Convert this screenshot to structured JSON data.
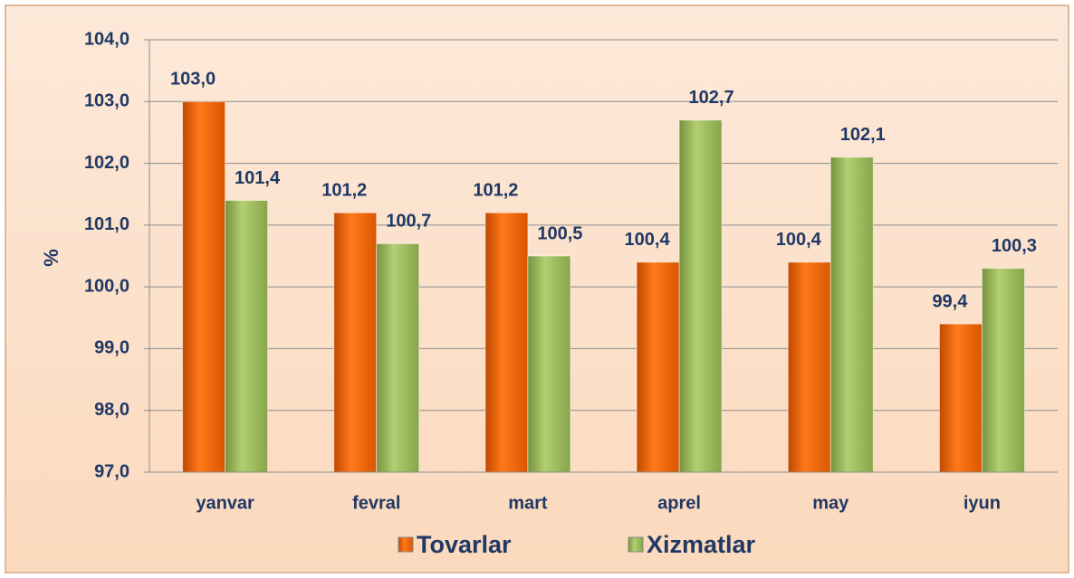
{
  "chart_data": {
    "type": "bar",
    "y_label": "%",
    "categories": [
      "yanvar",
      "fevral",
      "mart",
      "aprel",
      "may",
      "iyun"
    ],
    "series": [
      {
        "name": "Tovarlar",
        "color": "#ff6600",
        "values": [
          103.0,
          101.2,
          101.2,
          100.4,
          100.4,
          99.4
        ],
        "value_labels": [
          "103,0",
          "101,2",
          "101,2",
          "100,4",
          "100,4",
          "99,4"
        ]
      },
      {
        "name": "Xizmatlar",
        "color": "#9bbb59",
        "values": [
          101.4,
          100.7,
          100.5,
          102.7,
          102.1,
          100.3
        ],
        "value_labels": [
          "101,4",
          "100,7",
          "100,5",
          "102,7",
          "102,1",
          "100,3"
        ]
      }
    ],
    "ylim": [
      97,
      104
    ],
    "yticks": [
      {
        "value": 97,
        "label": "97,0"
      },
      {
        "value": 98,
        "label": "98,0"
      },
      {
        "value": 99,
        "label": "99,0"
      },
      {
        "value": 100,
        "label": "100,0"
      },
      {
        "value": 101,
        "label": "101,0"
      },
      {
        "value": 102,
        "label": "102,0"
      },
      {
        "value": 103,
        "label": "103,0"
      },
      {
        "value": 104,
        "label": "104,0"
      }
    ],
    "grid": true,
    "legend": "bottom"
  }
}
